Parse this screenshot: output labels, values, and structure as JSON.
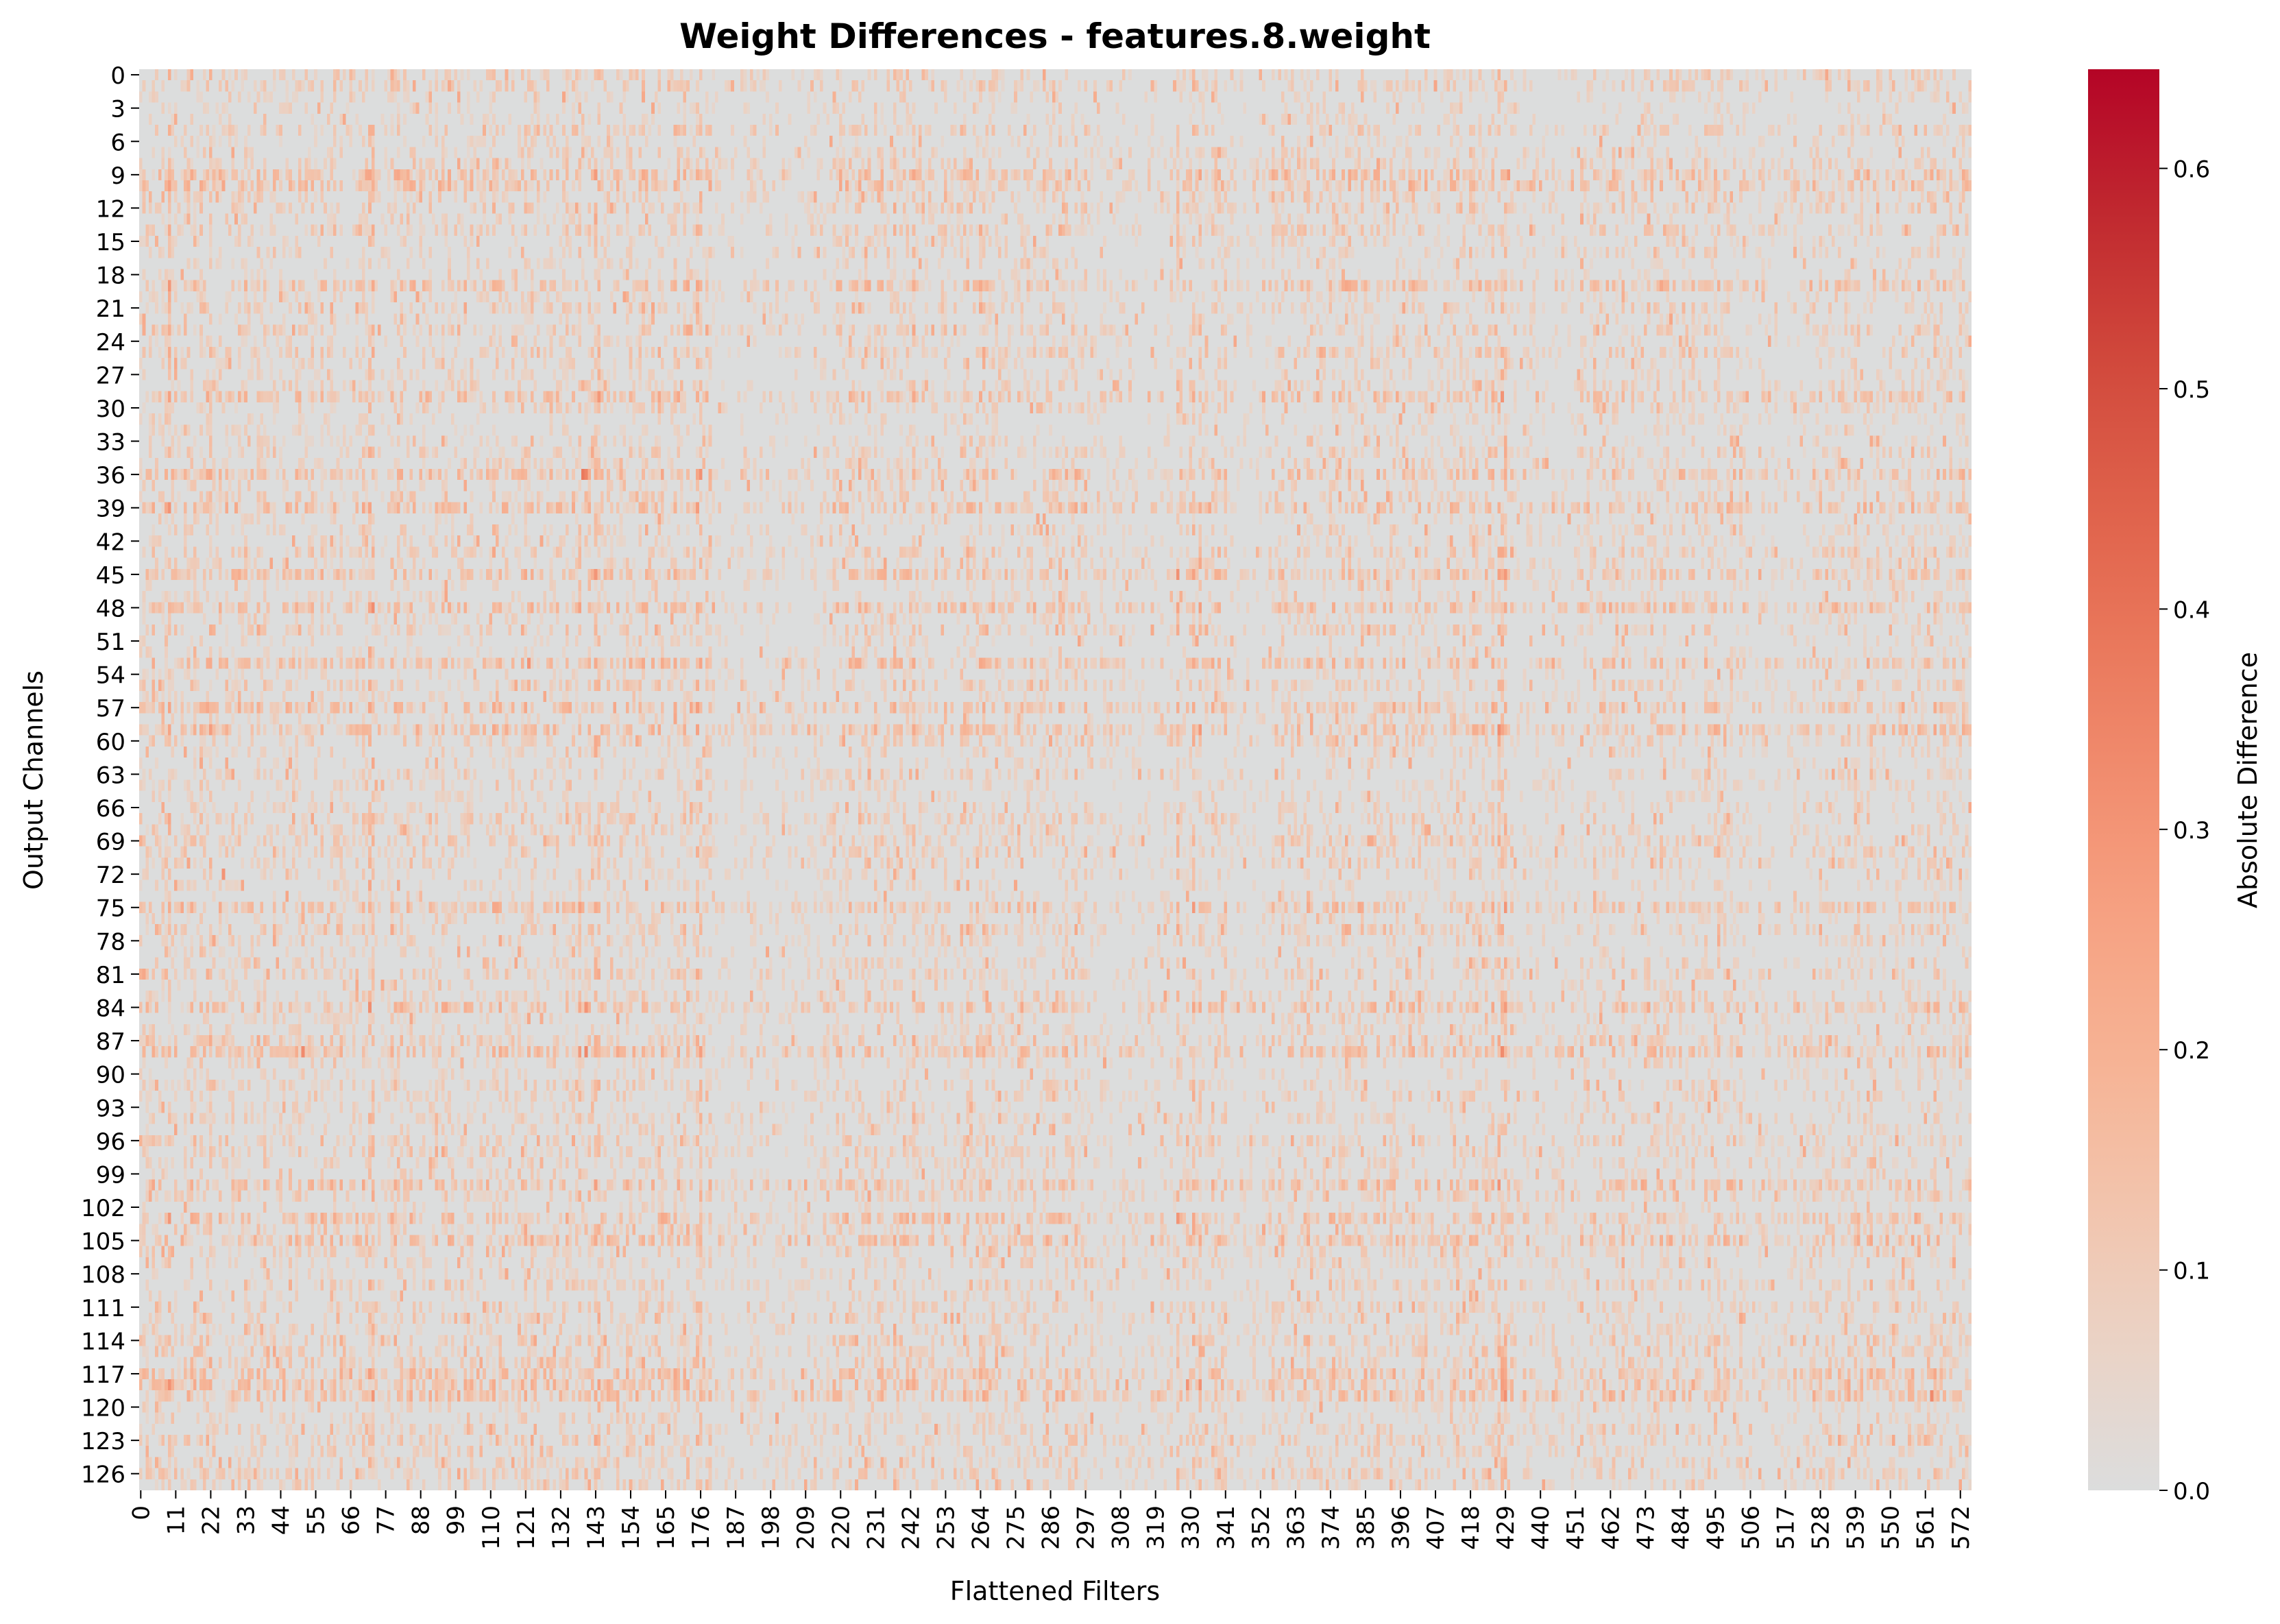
{
  "chart_data": {
    "type": "heatmap",
    "title": "Weight Differences - features.8.weight",
    "xlabel": "Flattened Filters",
    "ylabel": "Output Channels",
    "colorbar_label": "Absolute Difference",
    "n_rows": 128,
    "n_cols": 576,
    "x_ticks": [
      0,
      11,
      22,
      33,
      44,
      55,
      66,
      77,
      88,
      99,
      110,
      121,
      132,
      143,
      154,
      165,
      176,
      187,
      198,
      209,
      220,
      231,
      242,
      253,
      264,
      275,
      286,
      297,
      308,
      319,
      330,
      341,
      352,
      363,
      374,
      385,
      396,
      407,
      418,
      429,
      440,
      451,
      462,
      473,
      484,
      495,
      506,
      517,
      528,
      539,
      550,
      561,
      572
    ],
    "y_ticks": [
      0,
      3,
      6,
      9,
      12,
      15,
      18,
      21,
      24,
      27,
      30,
      33,
      36,
      39,
      42,
      45,
      48,
      51,
      54,
      57,
      60,
      63,
      66,
      69,
      72,
      75,
      78,
      81,
      84,
      87,
      90,
      93,
      96,
      99,
      102,
      105,
      108,
      111,
      114,
      117,
      120,
      123,
      126
    ],
    "colorbar": {
      "vmin": 0.0,
      "vmax": 0.645,
      "ticks": [
        0.0,
        0.1,
        0.2,
        0.3,
        0.4,
        0.5,
        0.6
      ]
    },
    "colormap": "coolwarm (upper half)",
    "colors": {
      "zero": "#dcdddd",
      "low": "#f2cbb7",
      "mid": "#f7a889",
      "high": "#e0654f",
      "max": "#b40426"
    },
    "grid": false,
    "legend": "colorbar-right",
    "value_summary": {
      "typical_max": 0.25,
      "global_max": 0.42,
      "high_columns": [
        9,
        22,
        72,
        73,
        138,
        143,
        144,
        175,
        176,
        326,
        331,
        333,
        427,
        428,
        429
      ],
      "high_rows": [
        9,
        10,
        19,
        29,
        36,
        39,
        45,
        48,
        53,
        57,
        59,
        75,
        84,
        88,
        100,
        103,
        105,
        117,
        118,
        119
      ],
      "hot_spots": [
        {
          "row": 36,
          "col": 139,
          "value": 0.38
        },
        {
          "row": 36,
          "col": 140,
          "value": 0.35
        },
        {
          "row": 88,
          "col": 140,
          "value": 0.34
        },
        {
          "row": 88,
          "col": 51,
          "value": 0.33
        },
        {
          "row": 53,
          "col": 122,
          "value": 0.3
        },
        {
          "row": 119,
          "col": 563,
          "value": 0.33
        },
        {
          "row": 72,
          "col": 26,
          "value": 0.3
        },
        {
          "row": 84,
          "col": 140,
          "value": 0.3
        },
        {
          "row": 9,
          "col": 430,
          "value": 0.28
        },
        {
          "row": 118,
          "col": 329,
          "value": 0.3
        }
      ]
    }
  }
}
